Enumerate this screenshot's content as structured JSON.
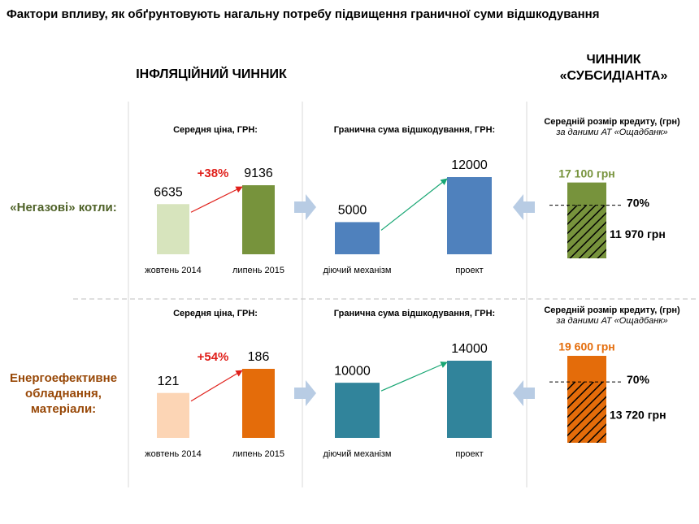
{
  "title": "Фактори впливу, як обґрунтовують нагальну потребу підвищення граничної суми відшкодування",
  "sections": {
    "inflation": "ІНФЛЯЦІЙНИЙ ЧИННИК",
    "subsidy": "ЧИННИК «СУБСИДІАНТА»"
  },
  "rows": [
    {
      "label": "«Негазові»  котли:",
      "label_color": "#4f6228",
      "price": {
        "type": "bar",
        "title": "Середня ціна, ГРН:",
        "categories": [
          "жовтень 2014",
          "липень 2015"
        ],
        "values": [
          6635,
          9136
        ],
        "colors": [
          "#d7e4bd",
          "#77933c"
        ],
        "change": "+38%"
      },
      "limit": {
        "type": "bar",
        "title": "Гранична сума відшкодування, ГРН:",
        "categories": [
          "діючий механізм",
          "проект"
        ],
        "values": [
          5000,
          12000
        ],
        "color": "#4f81bd"
      },
      "credit": {
        "type": "stacked-bar",
        "title": "Середній розмір кредиту, (грн)",
        "source": "за даними АТ «Ощадбанк»",
        "value": 17100,
        "value_label": "17 100 грн",
        "share": {
          "value": 70,
          "label": "70%"
        },
        "part": 11970,
        "part_label": "11 970 грн",
        "color": "#77933c",
        "label_color": "#77933c"
      }
    },
    {
      "label": "Енергоефективне обладнання, матеріали:",
      "label_color": "#984807",
      "price": {
        "type": "bar",
        "title": "Середня ціна, ГРН:",
        "categories": [
          "жовтень 2014",
          "липень 2015"
        ],
        "values": [
          121,
          186
        ],
        "colors": [
          "#fcd5b5",
          "#e46c0a"
        ],
        "change": "+54%"
      },
      "limit": {
        "type": "bar",
        "title": "Гранична сума відшкодування, ГРН:",
        "categories": [
          "діючий механізм",
          "проект"
        ],
        "values": [
          10000,
          14000
        ],
        "color": "#31849b"
      },
      "credit": {
        "type": "stacked-bar",
        "title": "Середній розмір кредиту, (грн)",
        "source": "за даними АТ «Ощадбанк»",
        "value": 19600,
        "value_label": "19 600 грн",
        "share": {
          "value": 70,
          "label": "70%"
        },
        "part": 13720,
        "part_label": "13 720 грн",
        "color": "#e46c0a",
        "label_color": "#e46c0a"
      }
    }
  ]
}
